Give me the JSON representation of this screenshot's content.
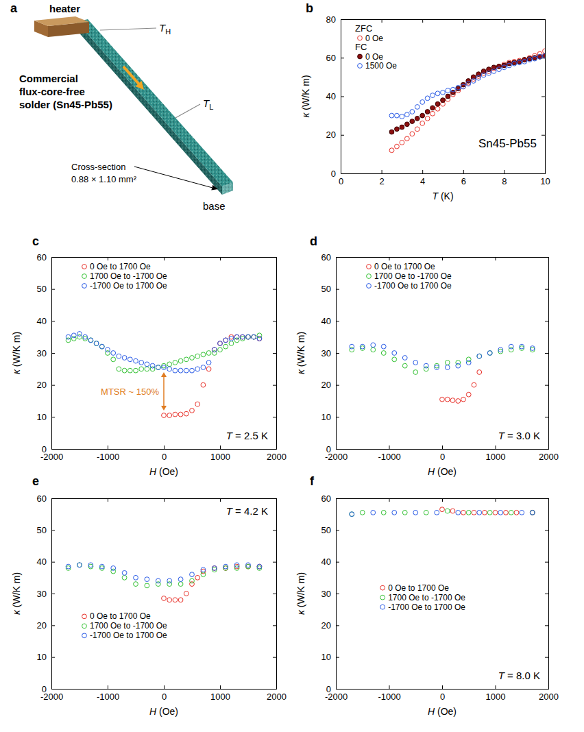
{
  "diagram": {
    "panel_label": "a",
    "heater_label": "heater",
    "hot_label": {
      "text": "T",
      "sub": "H"
    },
    "cold_label": {
      "text": "T",
      "sub": "L"
    },
    "sample_label": [
      "Commercial",
      "flux-core-free",
      "solder (Sn45-Pb55)"
    ],
    "cross_section_label": [
      "Cross-section",
      "0.88 × 1.10 mm²"
    ],
    "base_label": "base"
  },
  "chart_data": [
    {
      "panel_label": "b",
      "type": "scatter",
      "annotation": "Sn45-Pb55",
      "x_label": "T (K)",
      "y_label": "κ (W/K m)",
      "xlim": [
        0,
        10
      ],
      "xticks": [
        0,
        2,
        4,
        6,
        8,
        10
      ],
      "ylim": [
        0,
        80
      ],
      "yticks": [
        0,
        20,
        40,
        60,
        80
      ],
      "legend": "upper left",
      "x": [
        2.5,
        2.75,
        3,
        3.25,
        3.5,
        3.75,
        4,
        4.25,
        4.5,
        4.75,
        5,
        5.25,
        5.5,
        5.75,
        6,
        6.25,
        6.5,
        6.75,
        7,
        7.25,
        7.5,
        7.75,
        8,
        8.25,
        8.5,
        8.75,
        9,
        9.25,
        9.5,
        9.75,
        10
      ],
      "series": [
        {
          "name": "0 Oe",
          "group": "ZFC",
          "color": "#e8312a",
          "marker": "open_circle",
          "values": [
            12,
            14,
            16,
            18,
            20.5,
            23,
            26,
            28.5,
            31,
            33.5,
            36,
            38.5,
            41,
            43,
            45,
            47,
            49,
            50.5,
            52,
            53,
            54.5,
            55.5,
            56.5,
            57.5,
            58,
            58.5,
            59,
            60,
            61,
            62,
            63.5
          ]
        },
        {
          "name": "0 Oe",
          "group": "FC",
          "color": "#8b1010",
          "marker": "filled_circle",
          "values": [
            21.5,
            23,
            24,
            25.5,
            27,
            28.5,
            30,
            32,
            34,
            36,
            38,
            40,
            42,
            44,
            46,
            48,
            50,
            51.5,
            53,
            54,
            55,
            55.5,
            56,
            57,
            57.5,
            58,
            59,
            59.5,
            60,
            60.5,
            61
          ]
        },
        {
          "name": "1500 Oe",
          "group": "FC",
          "color": "#2b5ce6",
          "marker": "open_circle",
          "values": [
            30,
            30,
            29.5,
            30.5,
            32,
            34.5,
            37,
            39,
            40.5,
            41.5,
            42,
            43,
            43.5,
            44.5,
            45,
            46.5,
            48,
            49.5,
            51,
            52,
            53,
            54,
            55,
            56,
            57,
            57.5,
            58,
            59,
            59.5,
            60.5,
            61
          ]
        }
      ]
    },
    {
      "panel_label": "c",
      "type": "scatter",
      "annotation": "T = 2.5 K",
      "x_label": "H (Oe)",
      "y_label": "κ (W/K m)",
      "xlim": [
        -2000,
        2000
      ],
      "xticks": [
        -2000,
        -1000,
        0,
        1000,
        2000
      ],
      "ylim": [
        0,
        60
      ],
      "yticks": [
        0,
        10,
        20,
        30,
        40,
        50,
        60
      ],
      "legend": "upper left",
      "arrow": {
        "x": 0,
        "from": 12,
        "to": 24,
        "label": "MTSR ~ 150%",
        "color": "#e07b20"
      },
      "series": [
        {
          "name": "0 Oe to 1700 Oe",
          "color": "#e8312a",
          "marker": "open_circle",
          "x": [
            0,
            100,
            200,
            300,
            400,
            500,
            600,
            700,
            800,
            900,
            1000,
            1100,
            1200,
            1300,
            1400,
            1500,
            1600,
            1700
          ],
          "values": [
            10.5,
            10.5,
            10.8,
            10.8,
            11,
            12,
            14,
            20,
            25,
            31,
            33,
            34,
            35,
            35,
            35,
            35,
            35,
            34.5
          ]
        },
        {
          "name": "1700 Oe to -1700 Oe",
          "color": "#35c235",
          "marker": "open_circle",
          "x": [
            1700,
            1600,
            1500,
            1400,
            1300,
            1200,
            1100,
            1000,
            900,
            800,
            700,
            600,
            500,
            400,
            300,
            200,
            100,
            0,
            -100,
            -200,
            -300,
            -400,
            -500,
            -600,
            -700,
            -800,
            -900,
            -1000,
            -1100,
            -1200,
            -1300,
            -1400,
            -1500,
            -1600,
            -1700
          ],
          "values": [
            35.5,
            35,
            35,
            34.5,
            34,
            33,
            32,
            31,
            30,
            30,
            29.5,
            29,
            28.5,
            28,
            27.5,
            27,
            26.5,
            26,
            25.5,
            25,
            25,
            25,
            24.5,
            24.5,
            24.5,
            25,
            28,
            30,
            32,
            33,
            34,
            34.5,
            35,
            34.5,
            34
          ]
        },
        {
          "name": "-1700 Oe to 1700 Oe",
          "color": "#2b5ce6",
          "marker": "open_circle",
          "x": [
            -1700,
            -1600,
            -1500,
            -1400,
            -1300,
            -1200,
            -1100,
            -1000,
            -900,
            -800,
            -700,
            -600,
            -500,
            -400,
            -300,
            -200,
            -100,
            0,
            100,
            200,
            300,
            400,
            500,
            600,
            700,
            800,
            900,
            1000,
            1100,
            1200,
            1300,
            1400,
            1500,
            1600,
            1700
          ],
          "values": [
            35,
            35.5,
            36,
            35,
            34,
            33,
            32,
            31,
            30,
            29,
            28.5,
            28,
            27.5,
            27,
            26.5,
            26,
            25.5,
            25.5,
            25,
            24.5,
            24.5,
            24.5,
            24.5,
            25,
            25.5,
            27,
            31,
            33,
            34,
            34.5,
            35,
            35,
            35,
            35,
            34.5
          ]
        }
      ]
    },
    {
      "panel_label": "d",
      "type": "scatter",
      "annotation": "T = 3.0 K",
      "x_label": "H (Oe)",
      "y_label": "κ (W/K m)",
      "xlim": [
        -2000,
        2000
      ],
      "xticks": [
        -2000,
        -1000,
        0,
        1000,
        2000
      ],
      "ylim": [
        0,
        60
      ],
      "yticks": [
        0,
        10,
        20,
        30,
        40,
        50,
        60
      ],
      "legend": "upper left",
      "series": [
        {
          "name": "0 Oe to 1700 Oe",
          "color": "#e8312a",
          "marker": "open_circle",
          "x": [
            0,
            100,
            200,
            300,
            400,
            500,
            600,
            700
          ],
          "values": [
            15.5,
            15.5,
            15.2,
            15,
            15.5,
            17,
            20,
            24
          ]
        },
        {
          "name": "1700 Oe to -1700 Oe",
          "color": "#35c235",
          "marker": "open_circle",
          "x": [
            1700,
            1500,
            1300,
            1100,
            900,
            700,
            500,
            300,
            100,
            -100,
            -300,
            -500,
            -700,
            -900,
            -1100,
            -1300,
            -1500,
            -1700
          ],
          "values": [
            31,
            31.5,
            31,
            30.5,
            30,
            29,
            28,
            27,
            27,
            26,
            25,
            24,
            26,
            28,
            30,
            31,
            31.5,
            31
          ]
        },
        {
          "name": "-1700 Oe to 1700 Oe",
          "color": "#2b5ce6",
          "marker": "open_circle",
          "x": [
            -1700,
            -1500,
            -1300,
            -1100,
            -900,
            -700,
            -500,
            -300,
            -100,
            100,
            300,
            500,
            700,
            900,
            1100,
            1300,
            1500,
            1700
          ],
          "values": [
            32,
            32,
            32.5,
            32,
            30,
            28.5,
            27,
            26,
            25.5,
            25.5,
            26,
            27,
            29,
            30,
            31,
            32,
            32,
            31.5
          ]
        }
      ]
    },
    {
      "panel_label": "e",
      "type": "scatter",
      "annotation": "T = 4.2 K",
      "x_label": "H (Oe)",
      "y_label": "κ (W/K m)",
      "xlim": [
        -2000,
        2000
      ],
      "xticks": [
        -2000,
        -1000,
        0,
        1000,
        2000
      ],
      "ylim": [
        0,
        60
      ],
      "yticks": [
        0,
        10,
        20,
        30,
        40,
        50,
        60
      ],
      "legend": "lower left",
      "series": [
        {
          "name": "0 Oe to 1700 Oe",
          "color": "#e8312a",
          "marker": "open_circle",
          "x": [
            0,
            100,
            200,
            300,
            400,
            500,
            600,
            700,
            900,
            1100,
            1300,
            1500,
            1700
          ],
          "values": [
            28.5,
            28,
            28,
            28,
            30,
            33,
            35,
            37,
            38,
            38,
            38.5,
            38.5,
            38.5
          ]
        },
        {
          "name": "1700 Oe to -1700 Oe",
          "color": "#35c235",
          "marker": "open_circle",
          "x": [
            1700,
            1500,
            1300,
            1100,
            900,
            700,
            500,
            300,
            100,
            -100,
            -300,
            -500,
            -700,
            -900,
            -1100,
            -1300,
            -1500,
            -1700
          ],
          "values": [
            38,
            38.5,
            38,
            38,
            37.5,
            36,
            34,
            33,
            33,
            33,
            32.5,
            33,
            35,
            37,
            38,
            38.5,
            39,
            38
          ]
        },
        {
          "name": "-1700 Oe to 1700 Oe",
          "color": "#2b5ce6",
          "marker": "open_circle",
          "x": [
            -1700,
            -1500,
            -1300,
            -1100,
            -900,
            -700,
            -500,
            -300,
            -100,
            100,
            300,
            500,
            700,
            900,
            1100,
            1300,
            1500,
            1700
          ],
          "values": [
            38.5,
            39,
            39,
            38.5,
            38,
            36.5,
            35,
            34.5,
            34,
            34,
            34.5,
            36,
            37.5,
            38,
            38.5,
            39,
            39,
            38.5
          ]
        }
      ]
    },
    {
      "panel_label": "f",
      "type": "scatter",
      "annotation": "T = 8.0 K",
      "x_label": "H (Oe)",
      "y_label": "κ (W/K m)",
      "xlim": [
        -2000,
        2000
      ],
      "xticks": [
        -2000,
        -1000,
        0,
        1000,
        2000
      ],
      "ylim": [
        0,
        60
      ],
      "yticks": [
        0,
        10,
        20,
        30,
        40,
        50,
        60
      ],
      "legend": "center",
      "series": [
        {
          "name": "0 Oe to 1700 Oe",
          "color": "#e8312a",
          "marker": "open_circle",
          "x": [
            0,
            200,
            400,
            600,
            800,
            1000,
            1200,
            1400,
            1700
          ],
          "values": [
            56.5,
            56,
            55.5,
            55.5,
            55.5,
            55.5,
            55.5,
            55.5,
            55.5
          ]
        },
        {
          "name": "1700 Oe to -1700 Oe",
          "color": "#35c235",
          "marker": "open_circle",
          "x": [
            1700,
            1300,
            900,
            500,
            100,
            -300,
            -700,
            -1100,
            -1500,
            -1700
          ],
          "values": [
            55.5,
            55.5,
            55.5,
            55.5,
            56,
            55.5,
            55.5,
            55.5,
            55.5,
            55
          ]
        },
        {
          "name": "-1700 Oe to 1700 Oe",
          "color": "#2b5ce6",
          "marker": "open_circle",
          "x": [
            -1700,
            -1300,
            -900,
            -500,
            -100,
            300,
            700,
            1100,
            1500,
            1700
          ],
          "values": [
            55,
            55.5,
            55.5,
            55.5,
            55.5,
            55.5,
            55.5,
            55.5,
            55.5,
            55.5
          ]
        }
      ]
    }
  ]
}
